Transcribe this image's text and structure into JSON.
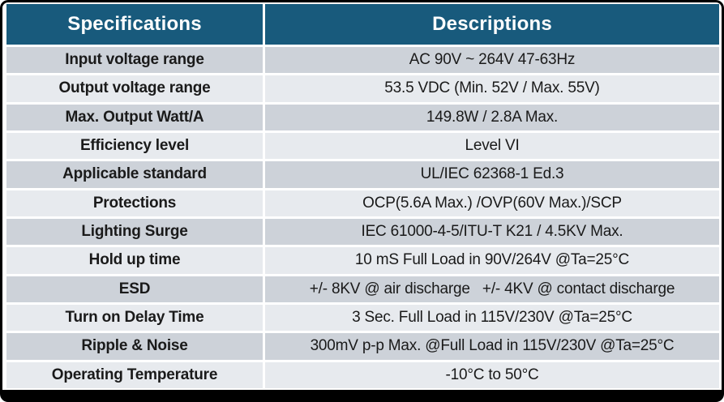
{
  "table": {
    "header": {
      "spec": "Specifications",
      "desc": "Descriptions"
    },
    "rows": [
      {
        "spec": "Input voltage range",
        "desc": "AC 90V ~ 264V 47-63Hz"
      },
      {
        "spec": "Output voltage range",
        "desc": "53.5 VDC (Min. 52V / Max. 55V)"
      },
      {
        "spec": "Max. Output Watt/A",
        "desc": "149.8W / 2.8A Max."
      },
      {
        "spec": "Efficiency level",
        "desc": "Level VI"
      },
      {
        "spec": "Applicable standard",
        "desc": "UL/IEC 62368-1 Ed.3"
      },
      {
        "spec": "Protections",
        "desc": "OCP(5.6A Max.) /OVP(60V Max.)/SCP"
      },
      {
        "spec": "Lighting Surge",
        "desc": "IEC 61000-4-5/ITU-T K21 / 4.5KV Max."
      },
      {
        "spec": "Hold up time",
        "desc": "10 mS Full Load in 90V/264V @Ta=25°C"
      },
      {
        "spec": "ESD",
        "desc": "+/- 8KV @ air discharge   +/- 4KV @ contact discharge"
      },
      {
        "spec": "Turn on Delay Time",
        "desc": "3 Sec. Full Load in 115V/230V @Ta=25°C"
      },
      {
        "spec": "Ripple & Noise",
        "desc": "300mV p-p Max. @Full Load in 115V/230V @Ta=25°C"
      },
      {
        "spec": "Operating Temperature",
        "desc": "-10°C to 50°C"
      }
    ],
    "colors": {
      "header_bg": "#185A7C",
      "header_text": "#FFFFFF",
      "row_dark": "#CDD2D9",
      "row_light": "#E7EAEE",
      "body_text": "#1A1A1A",
      "border": "#000000"
    }
  }
}
